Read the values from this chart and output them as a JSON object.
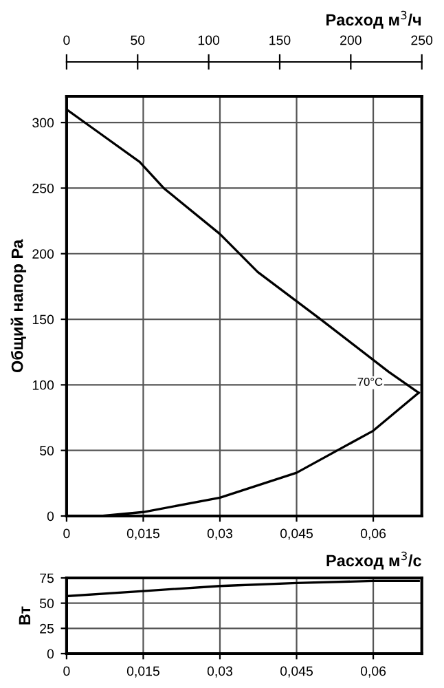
{
  "chart_data": [
    {
      "type": "line",
      "xlabel": "Расход м$^{3}$/с",
      "x2label": "Расход м$^{3}$/ч",
      "ylabel": "Общий напор Ра",
      "xlim": [
        0,
        0.0695
      ],
      "xticks": [
        {
          "value": 0,
          "label": "0"
        },
        {
          "value": 0.015,
          "label": "0,015"
        },
        {
          "value": 0.03,
          "label": "0,03"
        },
        {
          "value": 0.045,
          "label": "0,045"
        },
        {
          "value": 0.06,
          "label": "0,06"
        }
      ],
      "x2lim": [
        0,
        250
      ],
      "x2ticks": [
        0,
        50,
        100,
        150,
        200,
        250
      ],
      "ylim": [
        0,
        320
      ],
      "yticks": [
        0,
        50,
        100,
        150,
        200,
        250,
        300
      ],
      "grid": true,
      "legend": false,
      "marker": "none",
      "line_style": "solid",
      "series": [
        {
          "color": "#000000",
          "x": [
            0,
            0.005,
            0.0143,
            0.019,
            0.03,
            0.0374,
            0.0497,
            0.063,
            0.0689
          ],
          "values": [
            310,
            296,
            270,
            250,
            215,
            186,
            150,
            110,
            94
          ]
        },
        {
          "color": "#000000",
          "x": [
            0.0067,
            0.015,
            0.03,
            0.045,
            0.06,
            0.0689
          ],
          "values": [
            0,
            3,
            14,
            33,
            65,
            94
          ]
        }
      ],
      "annotations": [
        {
          "text": "70°C",
          "x": 0.063,
          "y": 110
        }
      ]
    },
    {
      "type": "line",
      "ylabel": "Вт",
      "xlim": [
        0,
        0.0695
      ],
      "xticks": [
        {
          "value": 0,
          "label": "0"
        },
        {
          "value": 0.015,
          "label": "0,015"
        },
        {
          "value": 0.03,
          "label": "0,03"
        },
        {
          "value": 0.045,
          "label": "0,045"
        },
        {
          "value": 0.06,
          "label": "0,06"
        }
      ],
      "ylim": [
        0,
        75
      ],
      "yticks": [
        0,
        25,
        50,
        75
      ],
      "grid": true,
      "legend": false,
      "marker": "none",
      "line_style": "solid",
      "series": [
        {
          "color": "#000000",
          "x": [
            0,
            0.015,
            0.03,
            0.045,
            0.06,
            0.0689
          ],
          "values": [
            57,
            62,
            67,
            70,
            72,
            72
          ]
        }
      ]
    }
  ]
}
